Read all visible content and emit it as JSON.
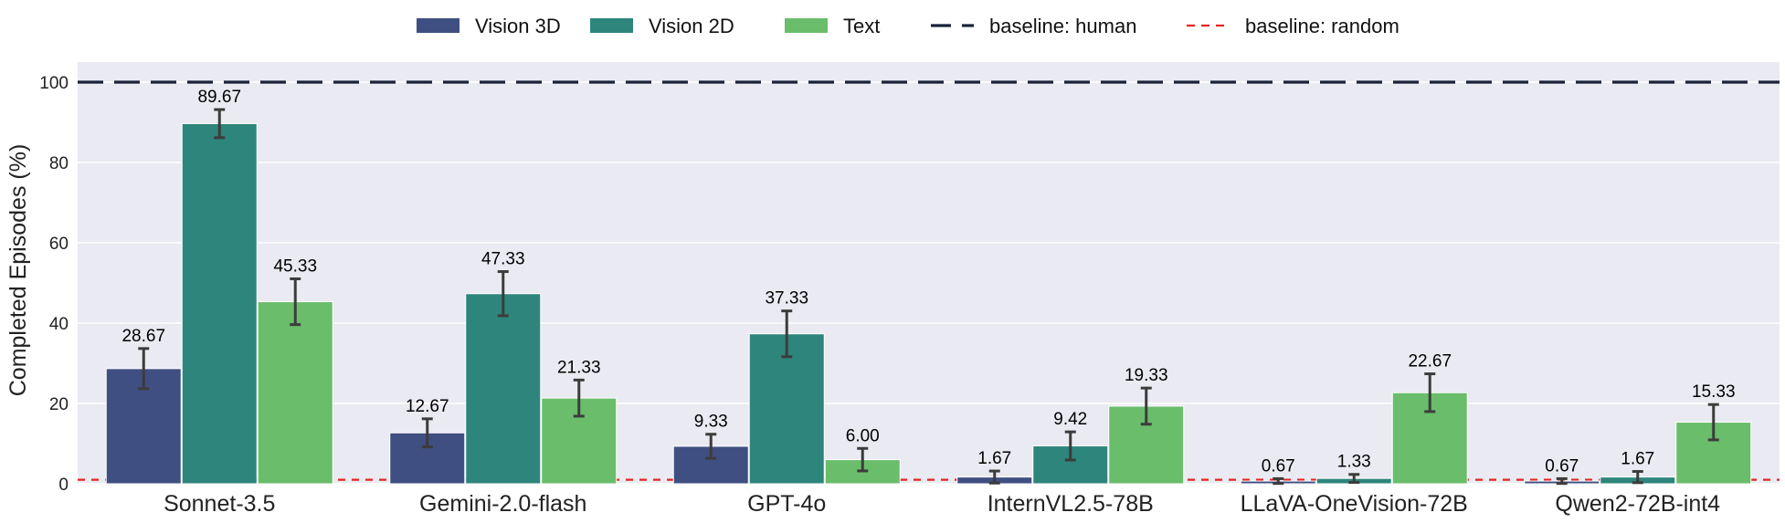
{
  "chart_data": {
    "type": "bar",
    "title": "",
    "xlabel": "",
    "ylabel": "Completed Episodes (%)",
    "ylim": [
      0,
      105
    ],
    "yticks": [
      0,
      20,
      40,
      60,
      80,
      100
    ],
    "grid": true,
    "legend_position": "top",
    "categories": [
      "Sonnet-3.5",
      "Gemini-2.0-flash",
      "GPT-4o",
      "InternVL2.5-78B",
      "LLaVA-OneVision-72B",
      "Qwen2-72B-int4"
    ],
    "series": [
      {
        "name": "Vision 3D",
        "color": "#3f4f82",
        "values": [
          28.67,
          12.67,
          9.33,
          1.67,
          0.67,
          0.67
        ],
        "labels": [
          "28.67",
          "12.67",
          "9.33",
          "1.67",
          "0.67",
          "0.67"
        ],
        "errors": [
          5.0,
          3.5,
          3.0,
          1.5,
          0.6,
          0.6
        ]
      },
      {
        "name": "Vision 2D",
        "color": "#2e857c",
        "values": [
          89.67,
          47.33,
          37.33,
          9.42,
          1.33,
          1.67
        ],
        "labels": [
          "89.67",
          "47.33",
          "37.33",
          "9.42",
          "1.33",
          "1.67"
        ],
        "errors": [
          3.5,
          5.5,
          5.7,
          3.5,
          1.0,
          1.4
        ]
      },
      {
        "name": "Text",
        "color": "#6abd6b",
        "values": [
          45.33,
          21.33,
          6.0,
          19.33,
          22.67,
          15.33
        ],
        "labels": [
          "45.33",
          "21.33",
          "6.00",
          "19.33",
          "22.67",
          "15.33"
        ],
        "errors": [
          5.7,
          4.5,
          2.8,
          4.5,
          4.7,
          4.4
        ]
      }
    ],
    "baselines": [
      {
        "name": "baseline: human",
        "value": 100,
        "color": "#1a2238",
        "style": "long-dash"
      },
      {
        "name": "baseline: random",
        "value": 1,
        "color": "#e8231f",
        "style": "short-dash"
      }
    ]
  }
}
